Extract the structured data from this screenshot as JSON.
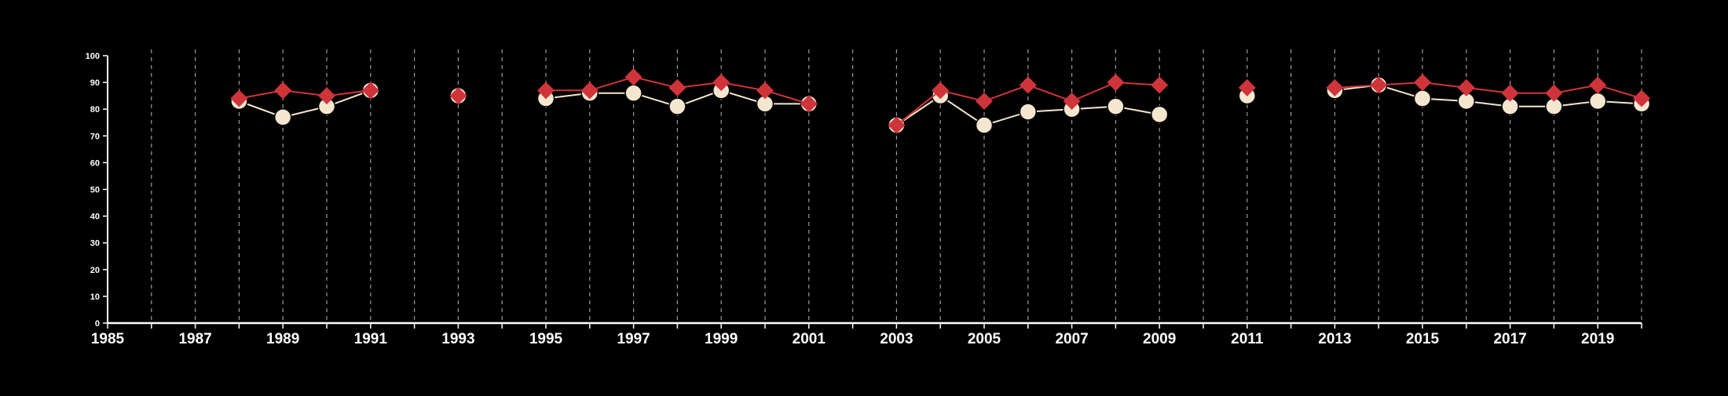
{
  "chart_data": {
    "type": "line",
    "title": "",
    "xlabel": "",
    "ylabel": "",
    "xlim": [
      1985,
      2020
    ],
    "ylim": [
      0,
      100
    ],
    "x_ticks": [
      1985,
      1987,
      1989,
      1991,
      1993,
      1995,
      1997,
      1999,
      2001,
      2003,
      2005,
      2007,
      2009,
      2011,
      2013,
      2015,
      2017,
      2019
    ],
    "y_ticks": [
      0,
      10,
      20,
      30,
      40,
      50,
      60,
      70,
      80,
      90,
      100
    ],
    "vertical_dashed_gridlines_each_year": true,
    "colors": {
      "background": "#000000",
      "axis": "#ffffff",
      "grid": "#9a9a9a",
      "series_circle": "#f5e6d0",
      "series_diamond": "#d0343b"
    },
    "series": [
      {
        "marker": "circle",
        "color": "#f5e6d0",
        "points": [
          {
            "x": 1988,
            "y": 83
          },
          {
            "x": 1989,
            "y": 77
          },
          {
            "x": 1990,
            "y": 81
          },
          {
            "x": 1991,
            "y": 87
          },
          {
            "x": 1993,
            "y": 85
          },
          {
            "x": 1995,
            "y": 84
          },
          {
            "x": 1996,
            "y": 86
          },
          {
            "x": 1997,
            "y": 86
          },
          {
            "x": 1998,
            "y": 81
          },
          {
            "x": 1999,
            "y": 87
          },
          {
            "x": 2000,
            "y": 82
          },
          {
            "x": 2001,
            "y": 82
          },
          {
            "x": 2003,
            "y": 74
          },
          {
            "x": 2004,
            "y": 85
          },
          {
            "x": 2005,
            "y": 74
          },
          {
            "x": 2006,
            "y": 79
          },
          {
            "x": 2007,
            "y": 80
          },
          {
            "x": 2008,
            "y": 81
          },
          {
            "x": 2009,
            "y": 78
          },
          {
            "x": 2011,
            "y": 85
          },
          {
            "x": 2013,
            "y": 87
          },
          {
            "x": 2014,
            "y": 89
          },
          {
            "x": 2015,
            "y": 84
          },
          {
            "x": 2016,
            "y": 83
          },
          {
            "x": 2017,
            "y": 81
          },
          {
            "x": 2018,
            "y": 81
          },
          {
            "x": 2019,
            "y": 83
          },
          {
            "x": 2020,
            "y": 82
          }
        ]
      },
      {
        "marker": "diamond",
        "color": "#d0343b",
        "points": [
          {
            "x": 1988,
            "y": 84
          },
          {
            "x": 1989,
            "y": 87
          },
          {
            "x": 1990,
            "y": 85
          },
          {
            "x": 1991,
            "y": 87
          },
          {
            "x": 1993,
            "y": 85
          },
          {
            "x": 1995,
            "y": 87
          },
          {
            "x": 1996,
            "y": 87
          },
          {
            "x": 1997,
            "y": 92
          },
          {
            "x": 1998,
            "y": 88
          },
          {
            "x": 1999,
            "y": 90
          },
          {
            "x": 2000,
            "y": 87
          },
          {
            "x": 2001,
            "y": 82
          },
          {
            "x": 2003,
            "y": 74
          },
          {
            "x": 2004,
            "y": 87
          },
          {
            "x": 2005,
            "y": 83
          },
          {
            "x": 2006,
            "y": 89
          },
          {
            "x": 2007,
            "y": 83
          },
          {
            "x": 2008,
            "y": 90
          },
          {
            "x": 2009,
            "y": 89
          },
          {
            "x": 2011,
            "y": 88
          },
          {
            "x": 2013,
            "y": 88
          },
          {
            "x": 2014,
            "y": 89
          },
          {
            "x": 2015,
            "y": 90
          },
          {
            "x": 2016,
            "y": 88
          },
          {
            "x": 2017,
            "y": 86
          },
          {
            "x": 2018,
            "y": 86
          },
          {
            "x": 2019,
            "y": 89
          },
          {
            "x": 2020,
            "y": 84
          }
        ]
      }
    ]
  }
}
